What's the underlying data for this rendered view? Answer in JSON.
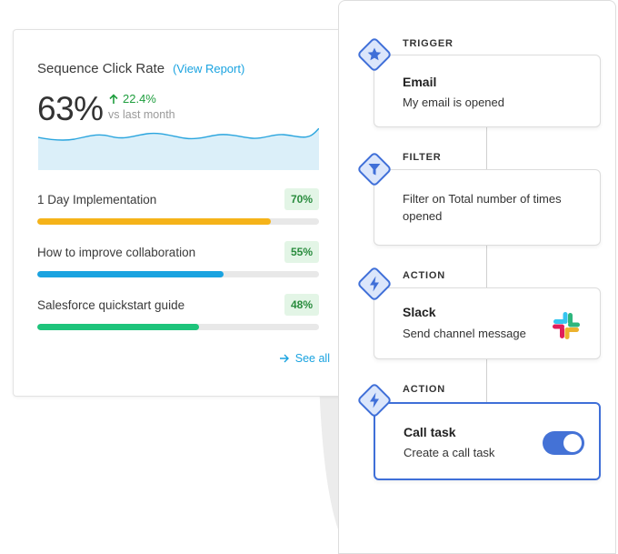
{
  "analytics": {
    "title": "Sequence Click Rate",
    "view_report": "(View Report)",
    "rate": "63%",
    "delta": "22.4%",
    "delta_sub": "vs last month",
    "metrics": [
      {
        "label": "1 Day Implementation",
        "value": "70%",
        "fill": 0.83,
        "color": "#f5b319"
      },
      {
        "label": "How to improve collaboration",
        "value": "55%",
        "fill": 0.66,
        "color": "#1aa3e0"
      },
      {
        "label": "Salesforce quickstart guide",
        "value": "48%",
        "fill": 0.575,
        "color": "#1ec47b"
      }
    ],
    "see_all": "See all"
  },
  "workflow": {
    "steps": [
      {
        "tag": "TRIGGER",
        "icon": "star-icon",
        "title": "Email",
        "desc": "My email is opened"
      },
      {
        "tag": "FILTER",
        "icon": "filter-icon",
        "title": "",
        "desc": "Filter on Total number of times opened"
      },
      {
        "tag": "ACTION",
        "icon": "lightning-icon",
        "title": "Slack",
        "desc": "Send channel message",
        "logo": "slack-logo-icon"
      },
      {
        "tag": "ACTION",
        "icon": "lightning-icon",
        "title": "Call task",
        "desc": "Create a call task",
        "toggle_on": true
      }
    ]
  },
  "colors": {
    "accent_blue": "#3f6fd8",
    "link": "#1aa3e0",
    "positive": "#1f9e3e",
    "icon_fill": "#dbe6fb"
  }
}
